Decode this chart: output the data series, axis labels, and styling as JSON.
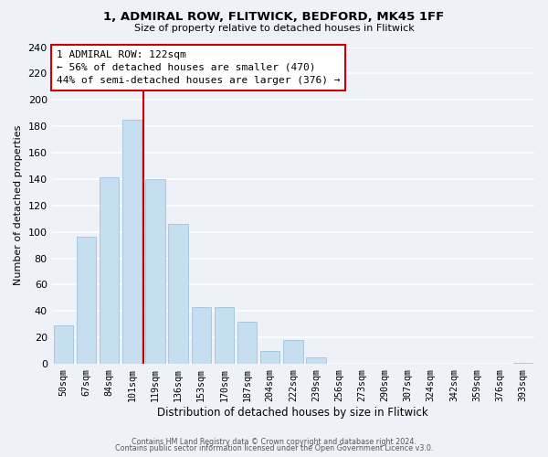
{
  "title": "1, ADMIRAL ROW, FLITWICK, BEDFORD, MK45 1FF",
  "subtitle": "Size of property relative to detached houses in Flitwick",
  "xlabel": "Distribution of detached houses by size in Flitwick",
  "ylabel": "Number of detached properties",
  "bar_color": "#c5dff0",
  "bar_edge_color": "#a0c4e0",
  "categories": [
    "50sqm",
    "67sqm",
    "84sqm",
    "101sqm",
    "119sqm",
    "136sqm",
    "153sqm",
    "170sqm",
    "187sqm",
    "204sqm",
    "222sqm",
    "239sqm",
    "256sqm",
    "273sqm",
    "290sqm",
    "307sqm",
    "324sqm",
    "342sqm",
    "359sqm",
    "376sqm",
    "393sqm"
  ],
  "values": [
    29,
    96,
    141,
    185,
    140,
    106,
    43,
    43,
    32,
    10,
    18,
    5,
    0,
    0,
    0,
    0,
    0,
    0,
    0,
    0,
    1
  ],
  "ylim": [
    0,
    240
  ],
  "yticks": [
    0,
    20,
    40,
    60,
    80,
    100,
    120,
    140,
    160,
    180,
    200,
    220,
    240
  ],
  "property_line_color": "#cc0000",
  "annotation_title": "1 ADMIRAL ROW: 122sqm",
  "annotation_line1": "← 56% of detached houses are smaller (470)",
  "annotation_line2": "44% of semi-detached houses are larger (376) →",
  "annotation_box_color": "#ffffff",
  "annotation_box_edge": "#cc0000",
  "footer1": "Contains HM Land Registry data © Crown copyright and database right 2024.",
  "footer2": "Contains public sector information licensed under the Open Government Licence v3.0.",
  "background_color": "#eef2f8",
  "grid_color": "#ffffff"
}
